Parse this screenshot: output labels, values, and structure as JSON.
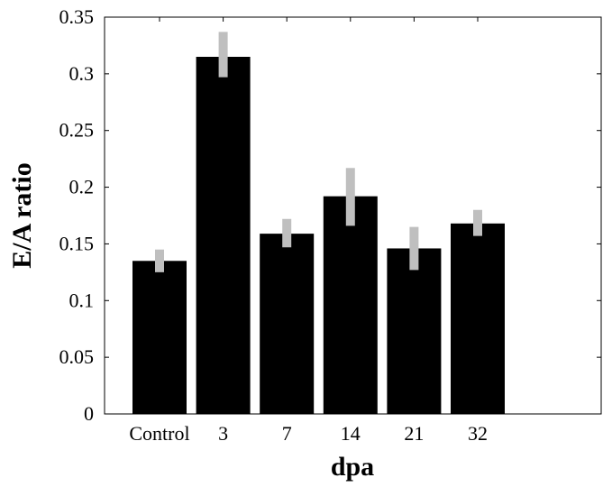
{
  "chart_data": {
    "type": "bar",
    "categories": [
      "Control",
      "3",
      "7",
      "14",
      "21",
      "32"
    ],
    "values": [
      0.135,
      0.315,
      0.159,
      0.192,
      0.146,
      0.168
    ],
    "error_low": [
      0.125,
      0.297,
      0.147,
      0.166,
      0.127,
      0.157
    ],
    "error_high": [
      0.145,
      0.337,
      0.172,
      0.217,
      0.165,
      0.18
    ],
    "xlabel": "dpa",
    "ylabel": "E/A ratio",
    "ylim": [
      0,
      0.35
    ],
    "yticks": [
      "0",
      "0.05",
      "0.1",
      "0.15",
      "0.2",
      "0.25",
      "0.3",
      "0.35"
    ],
    "bar_color": "#000000",
    "error_color": "#bfbfbf",
    "grid": false,
    "legend": "none"
  }
}
